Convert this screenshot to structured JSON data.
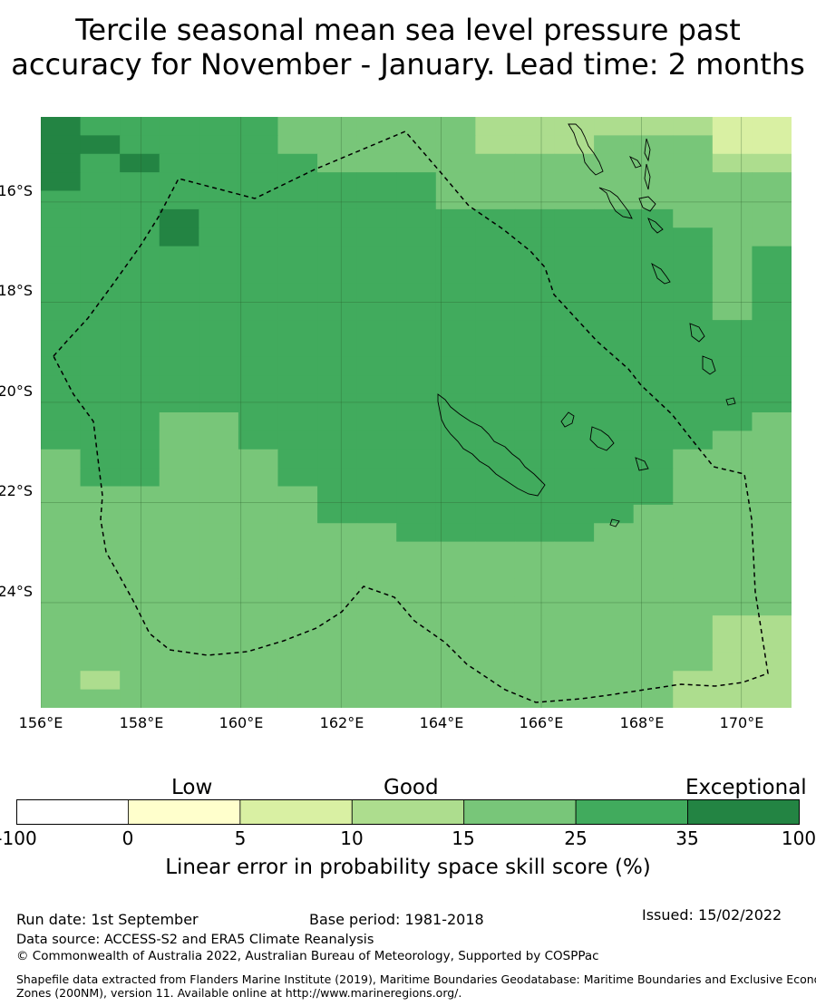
{
  "title": {
    "line1": "Tercile seasonal mean sea level pressure past",
    "line2": "accuracy for November - January. Lead time: 2 months"
  },
  "map": {
    "lon_range": [
      156,
      171
    ],
    "lat_range": [
      -14.3,
      -26.1
    ],
    "lat_ticks": [
      "16°S",
      "18°S",
      "20°S",
      "22°S",
      "24°S"
    ],
    "lon_ticks": [
      "156°E",
      "158°E",
      "160°E",
      "162°E",
      "164°E",
      "166°E",
      "168°E",
      "170°E"
    ],
    "boundary_style": "dashed",
    "grid": true
  },
  "legend": {
    "categories": [
      "Low",
      "Good",
      "Exceptional"
    ],
    "tick_labels": [
      "-100",
      "0",
      "5",
      "10",
      "15",
      "25",
      "35",
      "100"
    ],
    "colors": [
      "#ffffff",
      "#ffffcc",
      "#d9f0a3",
      "#addd8e",
      "#78c679",
      "#41ab5d",
      "#238443"
    ],
    "title": "Linear error in probability space skill score (%)"
  },
  "footer": {
    "run_date": "Run date: 1st September",
    "base_period": "Base period: 1981-2018",
    "issued": "Issued: 15/02/2022",
    "data_source": "Data source: ACCESS-S2 and ERA5 Climate Reanalysis",
    "copyright": "© Commonwealth of Australia 2022, Australian Bureau of Meteorology, Supported by COSPPac",
    "shapefile_line1": "Shapefile data extracted from Flanders Marine Institute (2019), Maritime Boundaries Geodatabase: Maritime Boundaries and Exclusive Economic",
    "shapefile_line2": "Zones (200NM), version 11. Available online at http://www.marineregions.org/."
  }
}
